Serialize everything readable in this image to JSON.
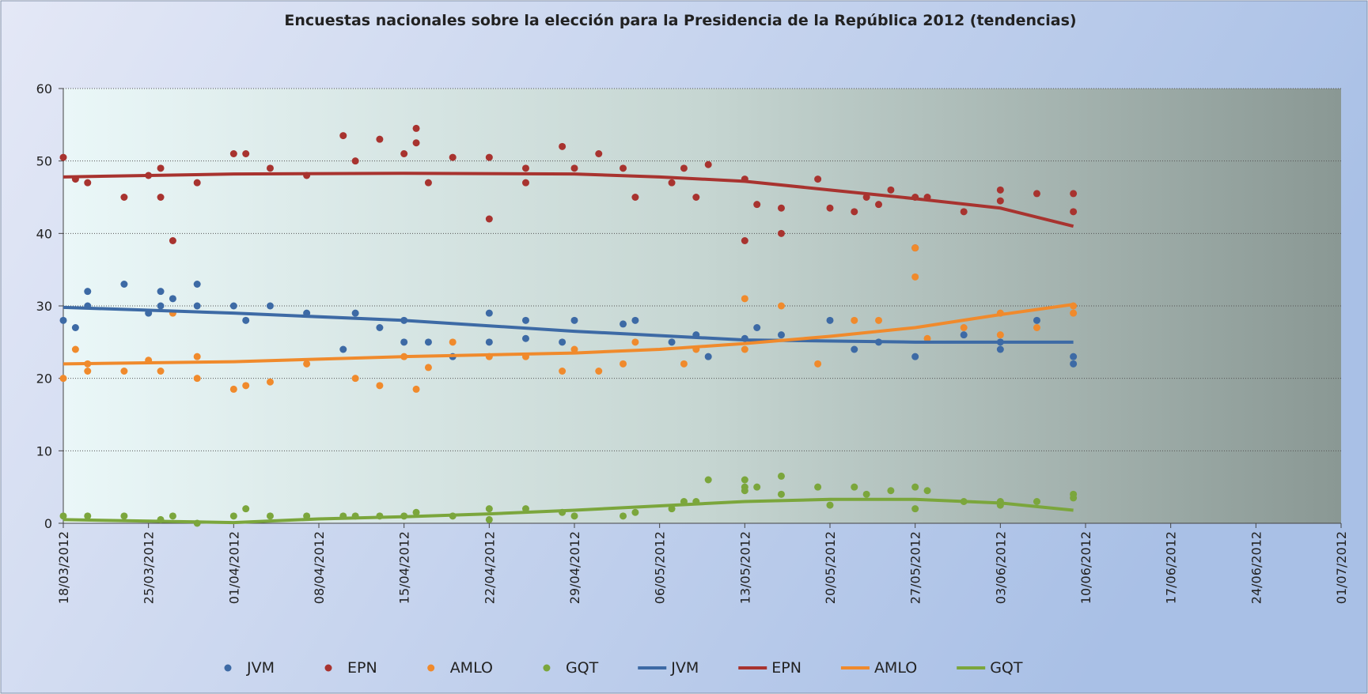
{
  "chart_data": {
    "type": "scatter",
    "title": "Encuestas nacionales sobre la elección para la Presidencia de la República 2012 (tendencias)",
    "xlim": [
      "18/03/2012",
      "01/07/2012"
    ],
    "xticks": [
      "18/03/2012",
      "25/03/2012",
      "01/04/2012",
      "08/04/2012",
      "15/04/2012",
      "22/04/2012",
      "29/04/2012",
      "06/05/2012",
      "13/05/2012",
      "20/05/2012",
      "27/05/2012",
      "03/06/2012",
      "10/06/2012",
      "17/06/2012",
      "24/06/2012",
      "01/07/2012"
    ],
    "ylim": [
      0,
      60
    ],
    "yticks": [
      0,
      10,
      20,
      30,
      40,
      50,
      60
    ],
    "grid": true,
    "series": [
      {
        "name": "JVM",
        "type": "scatter",
        "color": "#3d6aa5",
        "x": [
          "18/03/2012",
          "19/03/2012",
          "20/03/2012",
          "20/03/2012",
          "23/03/2012",
          "25/03/2012",
          "26/03/2012",
          "26/03/2012",
          "27/03/2012",
          "29/03/2012",
          "29/03/2012",
          "01/04/2012",
          "02/04/2012",
          "04/04/2012",
          "07/04/2012",
          "10/04/2012",
          "11/04/2012",
          "13/04/2012",
          "15/04/2012",
          "15/04/2012",
          "17/04/2012",
          "19/04/2012",
          "22/04/2012",
          "22/04/2012",
          "25/04/2012",
          "25/04/2012",
          "28/04/2012",
          "29/04/2012",
          "03/05/2012",
          "04/05/2012",
          "07/05/2012",
          "09/05/2012",
          "10/05/2012",
          "13/05/2012",
          "14/05/2012",
          "16/05/2012",
          "20/05/2012",
          "22/05/2012",
          "24/05/2012",
          "27/05/2012",
          "31/05/2012",
          "03/06/2012",
          "03/06/2012",
          "06/06/2012",
          "09/06/2012",
          "09/06/2012"
        ],
        "values": [
          28,
          27,
          32,
          30,
          33,
          29,
          32,
          30,
          31,
          33,
          30,
          30,
          28,
          30,
          29,
          24,
          29,
          27,
          25,
          28,
          25,
          23,
          29,
          25,
          28,
          25.5,
          25,
          28,
          27.5,
          28,
          25,
          26,
          23,
          25.5,
          27,
          26,
          28,
          24,
          25,
          23,
          26,
          25,
          24,
          28,
          23,
          22
        ]
      },
      {
        "name": "EPN",
        "type": "scatter",
        "color": "#a8332f",
        "x": [
          "18/03/2012",
          "19/03/2012",
          "20/03/2012",
          "23/03/2012",
          "25/03/2012",
          "26/03/2012",
          "26/03/2012",
          "27/03/2012",
          "29/03/2012",
          "01/04/2012",
          "02/04/2012",
          "04/04/2012",
          "07/04/2012",
          "10/04/2012",
          "11/04/2012",
          "13/04/2012",
          "15/04/2012",
          "16/04/2012",
          "16/04/2012",
          "17/04/2012",
          "19/04/2012",
          "22/04/2012",
          "22/04/2012",
          "25/04/2012",
          "25/04/2012",
          "28/04/2012",
          "29/04/2012",
          "01/05/2012",
          "03/05/2012",
          "04/05/2012",
          "07/05/2012",
          "08/05/2012",
          "09/05/2012",
          "10/05/2012",
          "13/05/2012",
          "13/05/2012",
          "14/05/2012",
          "16/05/2012",
          "16/05/2012",
          "19/05/2012",
          "20/05/2012",
          "22/05/2012",
          "23/05/2012",
          "24/05/2012",
          "25/05/2012",
          "27/05/2012",
          "27/05/2012",
          "28/05/2012",
          "31/05/2012",
          "03/06/2012",
          "03/06/2012",
          "06/06/2012",
          "09/06/2012",
          "09/06/2012"
        ],
        "values": [
          50.5,
          47.5,
          47,
          45,
          48,
          49,
          45,
          39,
          47,
          51,
          51,
          49,
          48,
          53.5,
          50,
          53,
          51,
          54.5,
          52.5,
          47,
          50.5,
          50.5,
          42,
          49,
          47,
          52,
          49,
          51,
          49,
          45,
          47,
          49,
          45,
          49.5,
          47.5,
          39,
          44,
          40,
          43.5,
          47.5,
          43.5,
          43,
          45,
          44,
          46,
          38,
          45,
          45,
          43,
          46,
          44.5,
          45.5,
          45.5,
          43
        ]
      },
      {
        "name": "AMLO",
        "type": "scatter",
        "color": "#f08a2c",
        "x": [
          "18/03/2012",
          "19/03/2012",
          "20/03/2012",
          "20/03/2012",
          "23/03/2012",
          "25/03/2012",
          "26/03/2012",
          "27/03/2012",
          "29/03/2012",
          "29/03/2012",
          "01/04/2012",
          "02/04/2012",
          "04/04/2012",
          "07/04/2012",
          "11/04/2012",
          "13/04/2012",
          "15/04/2012",
          "16/04/2012",
          "17/04/2012",
          "19/04/2012",
          "22/04/2012",
          "25/04/2012",
          "28/04/2012",
          "29/04/2012",
          "01/05/2012",
          "03/05/2012",
          "04/05/2012",
          "08/05/2012",
          "09/05/2012",
          "13/05/2012",
          "13/05/2012",
          "16/05/2012",
          "19/05/2012",
          "22/05/2012",
          "24/05/2012",
          "27/05/2012",
          "27/05/2012",
          "28/05/2012",
          "31/05/2012",
          "03/06/2012",
          "03/06/2012",
          "06/06/2012",
          "09/06/2012",
          "09/06/2012"
        ],
        "values": [
          20,
          24,
          22,
          21,
          21,
          22.5,
          21,
          29,
          20,
          23,
          18.5,
          19,
          19.5,
          22,
          20,
          19,
          23,
          18.5,
          21.5,
          25,
          23,
          23,
          21,
          24,
          21,
          22,
          25,
          22,
          24,
          31,
          24,
          30,
          22,
          28,
          28,
          34,
          38,
          25.5,
          27,
          29,
          26,
          27,
          30,
          29
        ]
      },
      {
        "name": "GQT",
        "type": "scatter",
        "color": "#7ba63c",
        "x": [
          "18/03/2012",
          "20/03/2012",
          "23/03/2012",
          "26/03/2012",
          "27/03/2012",
          "29/03/2012",
          "01/04/2012",
          "02/04/2012",
          "04/04/2012",
          "07/04/2012",
          "10/04/2012",
          "11/04/2012",
          "13/04/2012",
          "15/04/2012",
          "16/04/2012",
          "19/04/2012",
          "22/04/2012",
          "22/04/2012",
          "25/04/2012",
          "28/04/2012",
          "29/04/2012",
          "03/05/2012",
          "04/05/2012",
          "07/05/2012",
          "08/05/2012",
          "09/05/2012",
          "10/05/2012",
          "13/05/2012",
          "13/05/2012",
          "13/05/2012",
          "14/05/2012",
          "16/05/2012",
          "16/05/2012",
          "19/05/2012",
          "20/05/2012",
          "22/05/2012",
          "23/05/2012",
          "25/05/2012",
          "27/05/2012",
          "27/05/2012",
          "28/05/2012",
          "31/05/2012",
          "03/06/2012",
          "03/06/2012",
          "06/06/2012",
          "09/06/2012",
          "09/06/2012"
        ],
        "values": [
          1,
          1,
          1,
          0.5,
          1,
          0,
          1,
          2,
          1,
          1,
          1,
          1,
          1,
          1,
          1.5,
          1,
          2,
          0.5,
          2,
          1.5,
          1,
          1,
          1.5,
          2,
          3,
          3,
          6,
          6,
          5,
          4.5,
          5,
          6.5,
          4,
          5,
          2.5,
          5,
          4,
          4.5,
          5,
          2,
          4.5,
          3,
          2.5,
          3,
          3,
          4,
          3.5
        ]
      },
      {
        "name": "JVM",
        "type": "line",
        "color": "#3d6aa5",
        "x": [
          "18/03/2012",
          "01/04/2012",
          "15/04/2012",
          "29/04/2012",
          "13/05/2012",
          "27/05/2012",
          "09/06/2012"
        ],
        "values": [
          29.8,
          29,
          28,
          26.5,
          25.3,
          25,
          25
        ]
      },
      {
        "name": "EPN",
        "type": "line",
        "color": "#a8332f",
        "x": [
          "18/03/2012",
          "01/04/2012",
          "15/04/2012",
          "29/04/2012",
          "06/05/2012",
          "13/05/2012",
          "20/05/2012",
          "27/05/2012",
          "03/06/2012",
          "09/06/2012"
        ],
        "values": [
          47.8,
          48.2,
          48.3,
          48.2,
          47.8,
          47.2,
          46,
          44.8,
          43.5,
          41
        ]
      },
      {
        "name": "AMLO",
        "type": "line",
        "color": "#f08a2c",
        "x": [
          "18/03/2012",
          "01/04/2012",
          "15/04/2012",
          "29/04/2012",
          "06/05/2012",
          "13/05/2012",
          "20/05/2012",
          "27/05/2012",
          "03/06/2012",
          "09/06/2012"
        ],
        "values": [
          22,
          22.3,
          23,
          23.5,
          24,
          24.8,
          25.8,
          27,
          28.8,
          30.2
        ]
      },
      {
        "name": "GQT",
        "type": "line",
        "color": "#7ba63c",
        "x": [
          "18/03/2012",
          "25/03/2012",
          "01/04/2012",
          "08/04/2012",
          "15/04/2012",
          "22/04/2012",
          "29/04/2012",
          "06/05/2012",
          "13/05/2012",
          "20/05/2012",
          "27/05/2012",
          "03/06/2012",
          "09/06/2012"
        ],
        "values": [
          0.5,
          0.3,
          0.1,
          0.6,
          0.9,
          1.3,
          1.8,
          2.4,
          3,
          3.3,
          3.3,
          2.8,
          1.8
        ]
      }
    ]
  }
}
